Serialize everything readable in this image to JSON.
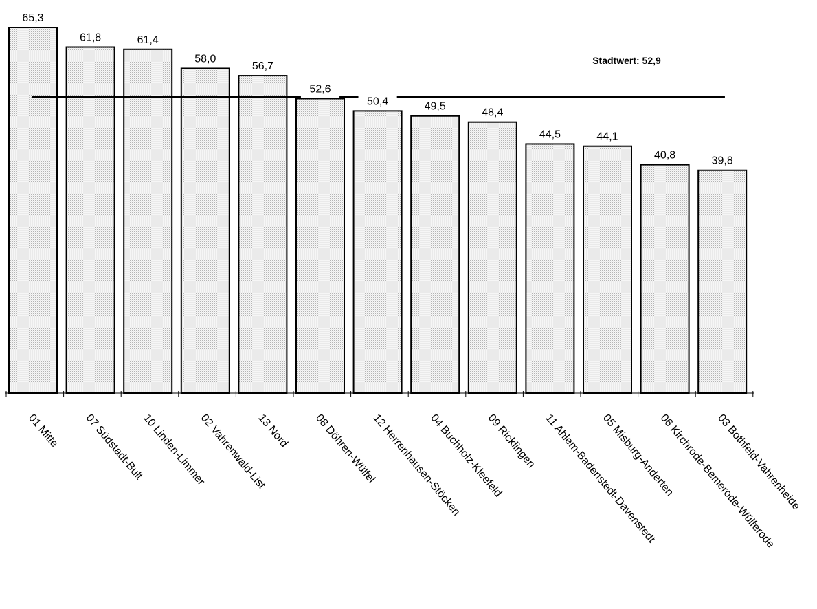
{
  "chart_data": {
    "type": "bar",
    "categories": [
      "01 Mitte",
      "07 Südstadt-Bult",
      "10 Linden-Limmer",
      "02 Vahrenwald-List",
      "13 Nord",
      "08 Döhren-Wülfel",
      "12 Herrenhausen-Stöcken",
      "04 Buchholz-Kleefeld",
      "09 Ricklingen",
      "11 Ahlem-Badenstedt-Davenstedt",
      "05 Misburg-Anderten",
      "06 Kirchrode-Bemerode-Wülferode",
      "03 Bothfeld-Vahrenheide"
    ],
    "values": [
      65.3,
      61.8,
      61.4,
      58.0,
      56.7,
      52.6,
      50.4,
      49.5,
      48.4,
      44.5,
      44.1,
      40.8,
      39.8
    ],
    "value_labels": [
      "65,3",
      "61,8",
      "61,4",
      "58,0",
      "56,7",
      "52,6",
      "50,4",
      "49,5",
      "48,4",
      "44,5",
      "44,1",
      "40,8",
      "39,8"
    ],
    "ylim": [
      0,
      65.3
    ],
    "reference_line": {
      "label": "Stadtwert: 52,9",
      "value": 52.9
    },
    "grid": false,
    "colors": {
      "bar_fill": "#ebebeb",
      "bar_stroke": "#000000",
      "reference_line": "#000000"
    }
  }
}
